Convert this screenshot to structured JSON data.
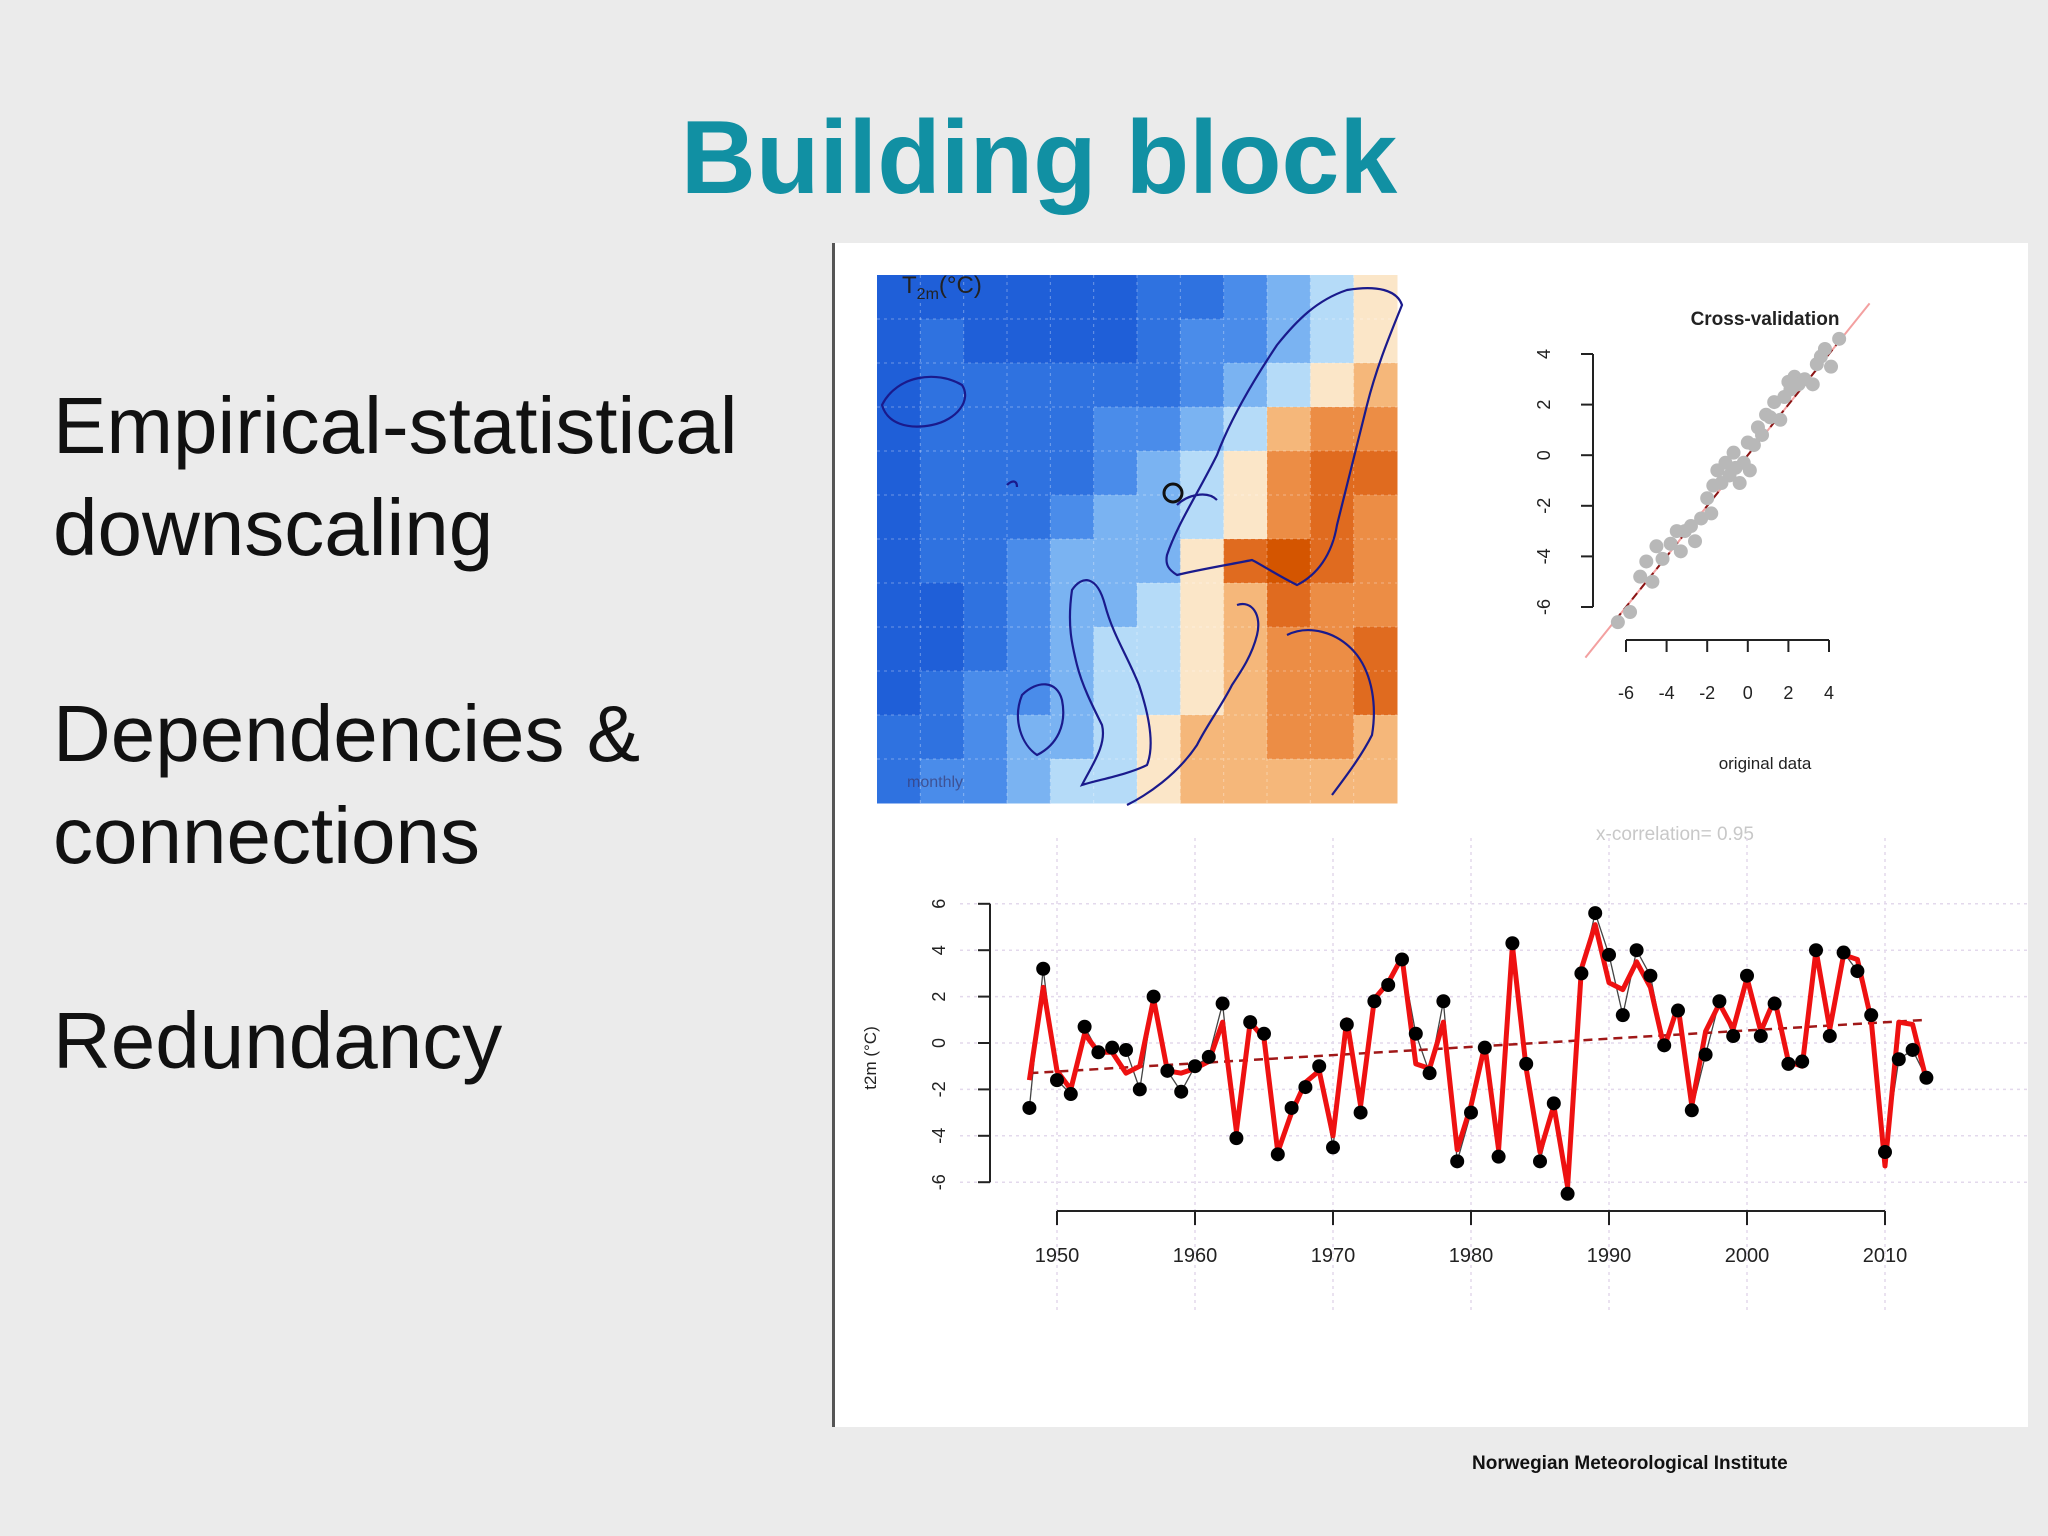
{
  "slide": {
    "title": "Building block",
    "bullets": [
      {
        "lines": [
          "Empirical-statistical",
          "downscaling"
        ]
      },
      {
        "lines": [
          "Dependencies &",
          "connections"
        ]
      },
      {
        "lines": [
          "Redundancy"
        ]
      }
    ],
    "footer": "Norwegian Meteorological Institute"
  },
  "map": {
    "title_main": "T",
    "title_sub": "2m",
    "title_unit": "(°C)",
    "watermark": "monthly",
    "colors": [
      "#1f5fd8",
      "#2f72e0",
      "#4a8cea",
      "#7ab3f2",
      "#b5dbf8",
      "#fbe6c8",
      "#f5b77a",
      "#ec8d45",
      "#e06b1f",
      "#d45500"
    ],
    "grid": [
      [
        0,
        0,
        0,
        0,
        0,
        0,
        1,
        1,
        2,
        3,
        4,
        5
      ],
      [
        0,
        1,
        0,
        0,
        0,
        0,
        1,
        2,
        2,
        3,
        4,
        5
      ],
      [
        0,
        1,
        1,
        1,
        1,
        1,
        1,
        2,
        3,
        4,
        5,
        6
      ],
      [
        0,
        1,
        1,
        1,
        1,
        2,
        2,
        3,
        4,
        6,
        7,
        7
      ],
      [
        0,
        1,
        1,
        1,
        1,
        2,
        3,
        4,
        5,
        7,
        8,
        8
      ],
      [
        0,
        1,
        1,
        1,
        2,
        3,
        3,
        4,
        5,
        7,
        8,
        7
      ],
      [
        0,
        1,
        1,
        2,
        3,
        3,
        3,
        5,
        8,
        9,
        8,
        7
      ],
      [
        0,
        0,
        1,
        2,
        3,
        3,
        4,
        5,
        6,
        8,
        7,
        7
      ],
      [
        0,
        0,
        1,
        2,
        3,
        4,
        4,
        5,
        6,
        7,
        7,
        8
      ],
      [
        0,
        1,
        2,
        2,
        3,
        4,
        4,
        5,
        6,
        7,
        7,
        8
      ],
      [
        1,
        1,
        2,
        3,
        3,
        4,
        5,
        6,
        6,
        7,
        7,
        6
      ],
      [
        1,
        2,
        2,
        3,
        4,
        4,
        5,
        6,
        6,
        6,
        6,
        6
      ]
    ]
  },
  "chart_data": [
    {
      "type": "scatter",
      "title": "Cross-validation",
      "xlabel": "original data",
      "ylabel": "",
      "xlim": [
        -6,
        4
      ],
      "ylim": [
        -6,
        4
      ],
      "x_ticks": [
        "-6",
        "-4",
        "-2",
        "0",
        "2",
        "4"
      ],
      "y_ticks": [
        "-6",
        "-4",
        "-2",
        "0",
        "2",
        "4"
      ],
      "points": [
        [
          -6.4,
          -6.6
        ],
        [
          -5.8,
          -6.2
        ],
        [
          -5.3,
          -4.8
        ],
        [
          -5.0,
          -4.2
        ],
        [
          -4.7,
          -5.0
        ],
        [
          -4.5,
          -3.6
        ],
        [
          -4.2,
          -4.1
        ],
        [
          -3.8,
          -3.5
        ],
        [
          -3.5,
          -3.0
        ],
        [
          -3.3,
          -3.8
        ],
        [
          -3.1,
          -3.0
        ],
        [
          -2.8,
          -2.8
        ],
        [
          -2.6,
          -3.4
        ],
        [
          -2.3,
          -2.5
        ],
        [
          -2.0,
          -1.7
        ],
        [
          -1.8,
          -2.3
        ],
        [
          -1.7,
          -1.2
        ],
        [
          -1.5,
          -0.6
        ],
        [
          -1.3,
          -1.1
        ],
        [
          -1.1,
          -0.3
        ],
        [
          -0.9,
          -0.8
        ],
        [
          -0.7,
          0.1
        ],
        [
          -0.6,
          -0.5
        ],
        [
          -0.4,
          -1.1
        ],
        [
          -0.2,
          -0.3
        ],
        [
          0.0,
          0.5
        ],
        [
          0.1,
          -0.6
        ],
        [
          0.3,
          0.4
        ],
        [
          0.5,
          1.1
        ],
        [
          0.7,
          0.8
        ],
        [
          0.9,
          1.6
        ],
        [
          1.1,
          1.5
        ],
        [
          1.3,
          2.1
        ],
        [
          1.6,
          1.4
        ],
        [
          1.8,
          2.3
        ],
        [
          2.0,
          2.9
        ],
        [
          2.1,
          2.6
        ],
        [
          2.3,
          3.1
        ],
        [
          2.5,
          2.8
        ],
        [
          2.8,
          3.0
        ],
        [
          3.2,
          2.8
        ],
        [
          3.4,
          3.6
        ],
        [
          3.6,
          3.9
        ],
        [
          3.8,
          4.2
        ],
        [
          4.1,
          3.5
        ],
        [
          4.5,
          4.6
        ]
      ],
      "fit_line": [
        [
          -6.5,
          -6.5
        ],
        [
          4.7,
          4.7
        ]
      ],
      "identity_line": [
        [
          -8.0,
          -8.0
        ],
        [
          6.0,
          6.0
        ]
      ],
      "annotation": "x-correlation= 0.95"
    },
    {
      "type": "line",
      "title": "",
      "xlabel": "",
      "ylabel": "t2m (°C)",
      "xlim": [
        1948,
        2013
      ],
      "ylim": [
        -6,
        6
      ],
      "x_ticks": [
        "1950",
        "1960",
        "1970",
        "1980",
        "1990",
        "2000",
        "2010"
      ],
      "y_ticks": [
        "-6",
        "-4",
        "-2",
        "0",
        "2",
        "4",
        "6"
      ],
      "series": [
        {
          "x": [
            1948,
            1949,
            1950,
            1951,
            1952,
            1953,
            1954,
            1955,
            1956,
            1957,
            1958,
            1959,
            1960,
            1961,
            1962,
            1963,
            1964,
            1965,
            1966,
            1967,
            1968,
            1969,
            1970,
            1971,
            1972,
            1973,
            1974,
            1975,
            1976,
            1977,
            1978,
            1979,
            1980,
            1981,
            1982,
            1983,
            1984,
            1985,
            1986,
            1987,
            1988,
            1989,
            1990,
            1991,
            1992,
            1993,
            1994,
            1995,
            1996,
            1997,
            1998,
            1999,
            2000,
            2001,
            2002,
            2003,
            2004,
            2005,
            2006,
            2007,
            2008,
            2009,
            2010,
            2011,
            2012,
            2013
          ],
          "observed": [
            -2.8,
            3.2,
            -1.6,
            -2.2,
            0.7,
            -0.4,
            -0.2,
            -0.3,
            -2.0,
            2.0,
            -1.2,
            -2.1,
            -1.0,
            -0.6,
            1.7,
            -4.1,
            0.9,
            0.4,
            -4.8,
            -2.8,
            -1.9,
            -1.0,
            -4.5,
            0.8,
            -3.0,
            1.8,
            2.5,
            3.6,
            0.4,
            -1.3,
            1.8,
            -5.1,
            -3.0,
            -0.2,
            -4.9,
            4.3,
            -0.9,
            -5.1,
            -2.6,
            -6.5,
            3.0,
            5.6,
            3.8,
            1.2,
            4.0,
            2.9,
            -0.1,
            1.4,
            -2.9,
            -0.5,
            1.8,
            0.3,
            2.9,
            0.3,
            1.7,
            -0.9,
            -0.8,
            4.0,
            0.3,
            3.9,
            3.1,
            1.2,
            -4.7,
            -0.7,
            -0.3,
            -1.5
          ],
          "fitted": [
            -1.6,
            2.4,
            -1.2,
            -2.0,
            0.4,
            -0.4,
            -0.4,
            -1.3,
            -1.0,
            1.9,
            -1.2,
            -1.3,
            -1.1,
            -0.8,
            0.9,
            -3.8,
            0.9,
            0.2,
            -4.7,
            -3.0,
            -1.7,
            -1.2,
            -4.0,
            1.0,
            -2.7,
            1.9,
            2.6,
            3.7,
            -0.9,
            -1.1,
            0.9,
            -4.6,
            -2.7,
            -0.1,
            -4.6,
            4.2,
            -1.1,
            -4.7,
            -2.7,
            -6.2,
            3.2,
            5.1,
            2.6,
            2.3,
            3.5,
            2.4,
            -0.2,
            1.6,
            -2.7,
            0.5,
            1.7,
            0.6,
            2.8,
            0.5,
            1.9,
            -0.8,
            -1.0,
            4.0,
            0.6,
            3.8,
            3.6,
            1.0,
            -5.3,
            0.9,
            0.8,
            -1.6
          ]
        },
        {
          "name": "trend",
          "x": [
            1948,
            2013
          ],
          "values": [
            -1.3,
            1.0
          ]
        }
      ]
    }
  ]
}
